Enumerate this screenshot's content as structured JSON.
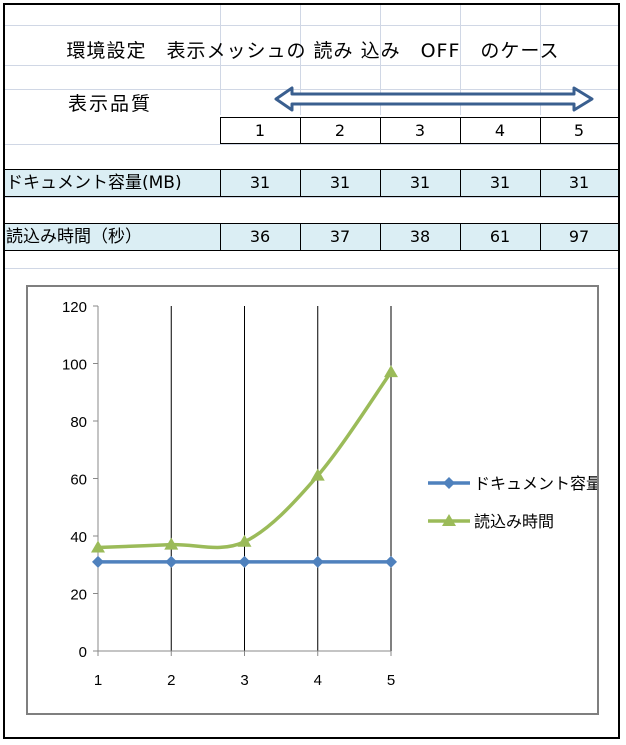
{
  "sheet": {
    "title": "環境設定　表示メッシュの 読み 込み　OFF　のケース",
    "quality_label": "表示品質"
  },
  "table": {
    "quality_levels": [
      "1",
      "2",
      "3",
      "4",
      "5"
    ],
    "rows": [
      {
        "label": "ドキュメント容量(MB)",
        "values": [
          "31",
          "31",
          "31",
          "31",
          "31"
        ]
      },
      {
        "label": "読込み時間（秒）",
        "values": [
          "36",
          "37",
          "38",
          "61",
          "97"
        ]
      }
    ]
  },
  "colors": {
    "arrow": "#3a5f8f",
    "series_doc": "#4f81bd",
    "series_time": "#9bbb59",
    "band": "#dbeef4"
  },
  "chart_data": {
    "type": "line",
    "categories": [
      1,
      2,
      3,
      4,
      5
    ],
    "series": [
      {
        "name": "ドキュメント容量",
        "values": [
          31,
          31,
          31,
          31,
          31
        ],
        "marker": "diamond"
      },
      {
        "name": "読込み時間",
        "values": [
          36,
          37,
          38,
          61,
          97
        ],
        "marker": "triangle",
        "smooth": true
      }
    ],
    "ylim": [
      0,
      120
    ],
    "yticks": [
      0,
      20,
      40,
      60,
      80,
      100,
      120
    ],
    "grid": "vertical",
    "legend": "right",
    "title": "",
    "xlabel": "",
    "ylabel": ""
  }
}
